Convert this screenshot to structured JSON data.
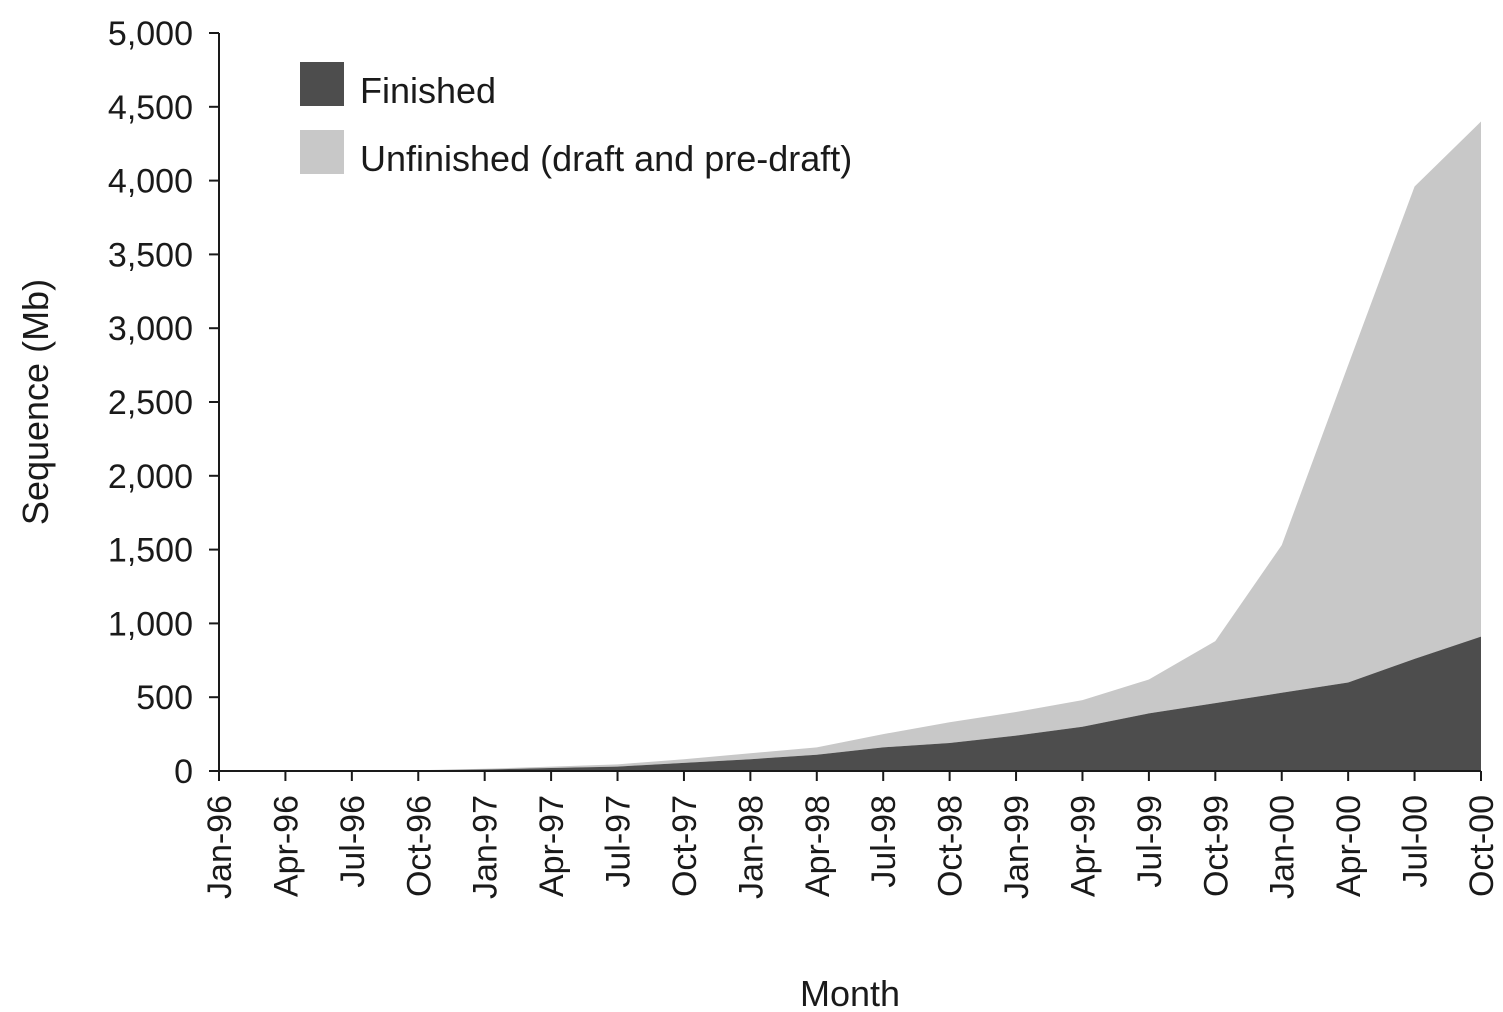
{
  "chart_data": {
    "type": "area",
    "stacked": true,
    "title": "",
    "xlabel": "Month",
    "ylabel": "Sequence (Mb)",
    "ylim": [
      0,
      5000
    ],
    "yticks": [
      0,
      500,
      1000,
      1500,
      2000,
      2500,
      3000,
      3500,
      4000,
      4500,
      5000
    ],
    "ytick_labels": [
      "0",
      "500",
      "1,000",
      "1,500",
      "2,000",
      "2,500",
      "3,000",
      "3,500",
      "4,000",
      "4,500",
      "5,000"
    ],
    "categories": [
      "Jan-96",
      "Apr-96",
      "Jul-96",
      "Oct-96",
      "Jan-97",
      "Apr-97",
      "Jul-97",
      "Oct-97",
      "Jan-98",
      "Apr-98",
      "Jul-98",
      "Oct-98",
      "Jan-99",
      "Apr-99",
      "Jul-99",
      "Oct-99",
      "Jan-00",
      "Apr-00",
      "Jul-00",
      "Oct-00"
    ],
    "grid": false,
    "legend_position": "top-left",
    "series": [
      {
        "name": "Finished",
        "color": "#4d4d4d",
        "values": [
          0,
          0,
          2,
          5,
          10,
          20,
          30,
          55,
          80,
          110,
          160,
          190,
          240,
          300,
          390,
          460,
          530,
          600,
          760,
          910
        ]
      },
      {
        "name": "Unfinished (draft and pre-draft)",
        "color": "#c8c8c8",
        "values": [
          0,
          0,
          0,
          0,
          5,
          10,
          15,
          25,
          40,
          50,
          90,
          140,
          160,
          180,
          230,
          420,
          1000,
          2150,
          3200,
          3490
        ]
      }
    ]
  }
}
